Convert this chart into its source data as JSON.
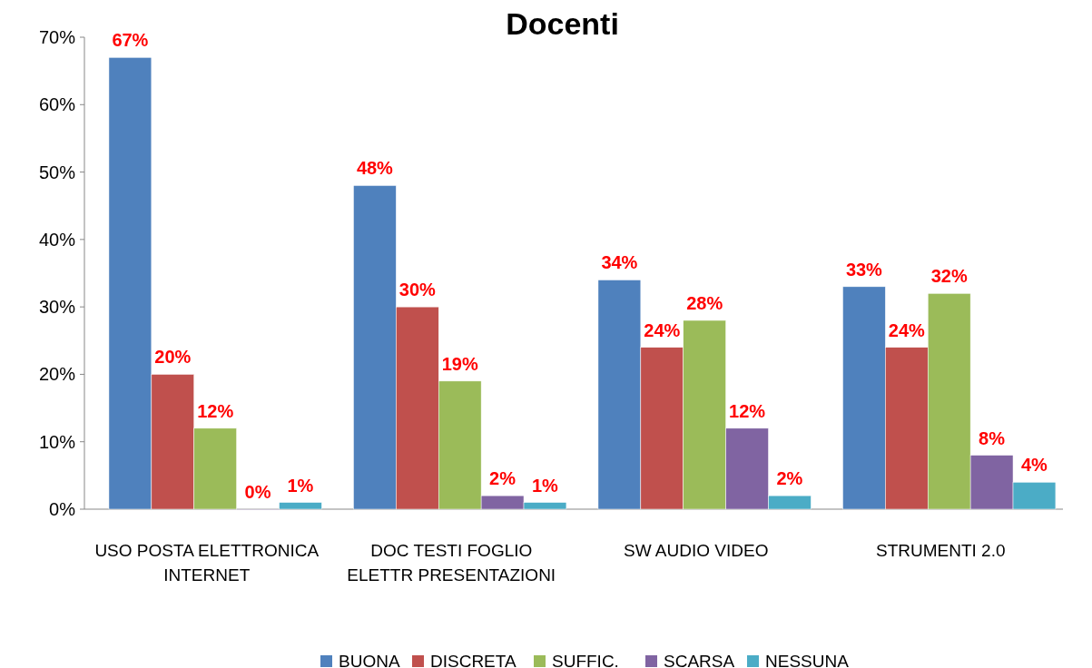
{
  "chart_data": {
    "type": "bar",
    "title": "Docenti",
    "categories": [
      "USO POSTA ELETTRONICA INTERNET",
      "DOC TESTI FOGLIO ELETTR PRESENTAZIONI",
      "SW AUDIO VIDEO",
      "STRUMENTI 2.0"
    ],
    "series": [
      {
        "name": "BUONA",
        "color": "#4f81bd",
        "values": [
          67,
          48,
          34,
          33
        ],
        "value_labels": [
          "67%",
          "48%",
          "34%",
          "33%"
        ]
      },
      {
        "name": "DISCRETA",
        "color": "#c0504d",
        "values": [
          20,
          30,
          24,
          24
        ],
        "value_labels": [
          "20%",
          "30%",
          "24%",
          "24%"
        ]
      },
      {
        "name": "SUFFIC.",
        "color": "#9bbb59",
        "values": [
          12,
          19,
          28,
          32
        ],
        "value_labels": [
          "12%",
          "19%",
          "28%",
          "32%"
        ]
      },
      {
        "name": "SCARSA",
        "color": "#8064a2",
        "values": [
          0,
          2,
          12,
          8
        ],
        "value_labels": [
          "0%",
          "2%",
          "12%",
          "8%"
        ]
      },
      {
        "name": "NESSUNA",
        "color": "#4bacc6",
        "values": [
          1,
          1,
          2,
          4
        ],
        "value_labels": [
          "1%",
          "1%",
          "2%",
          "4%"
        ]
      }
    ],
    "ylim": [
      0,
      70
    ],
    "yticks": [
      {
        "value": 0,
        "label": "0%"
      },
      {
        "value": 10,
        "label": "10%"
      },
      {
        "value": 20,
        "label": "20%"
      },
      {
        "value": 30,
        "label": "30%"
      },
      {
        "value": 40,
        "label": "40%"
      },
      {
        "value": 50,
        "label": "50%"
      },
      {
        "value": 60,
        "label": "60%"
      },
      {
        "value": 70,
        "label": "70%"
      }
    ],
    "grid": false,
    "legend": "bottom"
  }
}
